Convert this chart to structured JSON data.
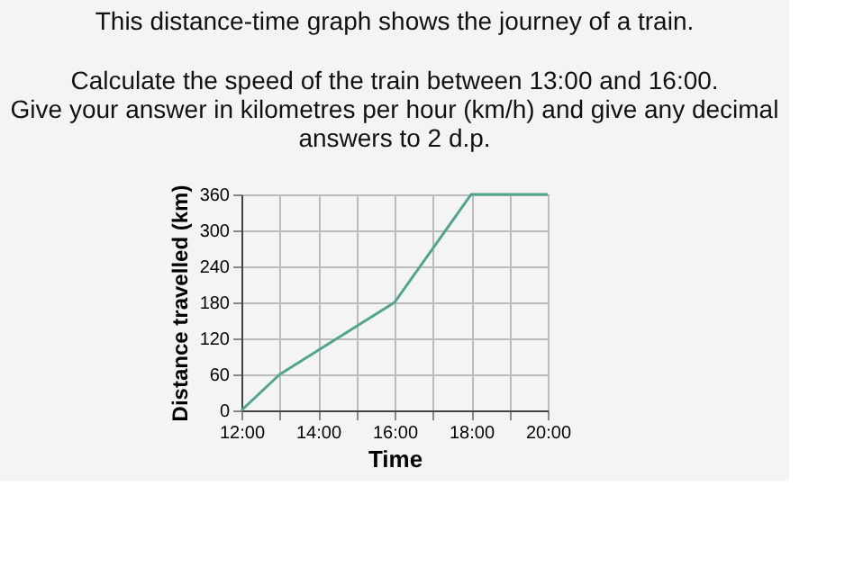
{
  "chart_data": {
    "type": "line",
    "title": "This distance-time graph shows the journey of a train.",
    "annotations": [
      "Calculate the speed of the train between 13:00 and 16:00.",
      "Give your answer in kilometres per hour (km/h) and give any decimal",
      "answers to 2 d.p."
    ],
    "xlabel": "Time",
    "ylabel": "Distance travelled (km)",
    "x": [
      12,
      13,
      16,
      18,
      20
    ],
    "series": [
      {
        "color": "#4fa58e",
        "values": [
          0,
          60,
          180,
          360,
          360
        ]
      }
    ],
    "xlim": [
      12,
      20
    ],
    "xticks": [
      {
        "value": 12,
        "label": "12:00"
      },
      {
        "value": 13,
        "label": null
      },
      {
        "value": 14,
        "label": "14:00"
      },
      {
        "value": 15,
        "label": null
      },
      {
        "value": 16,
        "label": "16:00"
      },
      {
        "value": 17,
        "label": null
      },
      {
        "value": 18,
        "label": "18:00"
      },
      {
        "value": 19,
        "label": null
      },
      {
        "value": 20,
        "label": "20:00"
      }
    ],
    "ylim": [
      0,
      360
    ],
    "yticks": [
      0,
      60,
      120,
      180,
      240,
      300,
      360
    ],
    "grid": true,
    "marker": "none",
    "line_style": "solid"
  }
}
